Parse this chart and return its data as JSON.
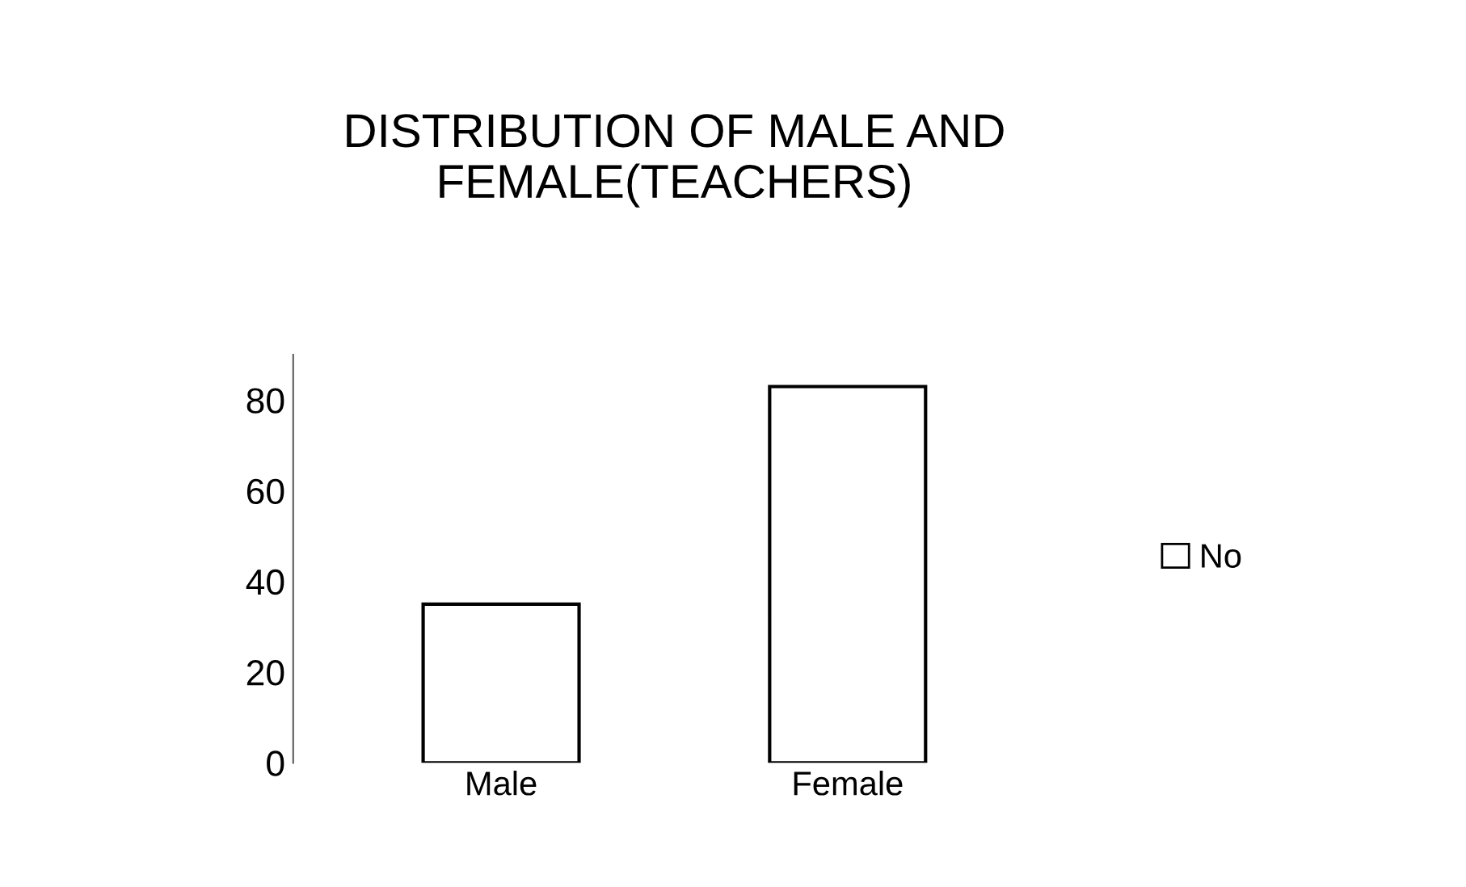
{
  "chart_data": {
    "type": "bar",
    "title": "DISTRIBUTION OF MALE AND\nFEMALE(TEACHERS)",
    "categories": [
      "Male",
      "Female"
    ],
    "series": [
      {
        "name": "No",
        "color": "#ffffff",
        "values": [
          35,
          83
        ]
      }
    ],
    "ylim": [
      0,
      90
    ],
    "yticks": [
      0,
      20,
      40,
      60,
      80
    ],
    "grid": false,
    "legend": "right"
  }
}
